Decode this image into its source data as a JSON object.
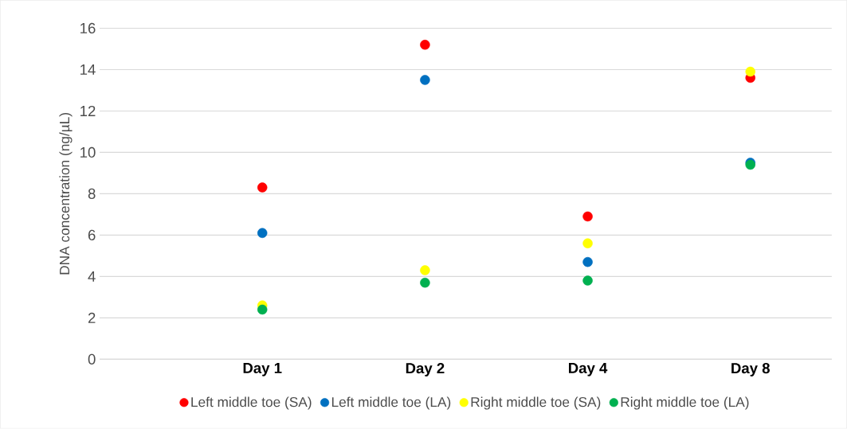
{
  "chart_data": {
    "type": "scatter",
    "ylabel": "DNA concentration (ng/µL)",
    "categories": [
      "Day 1",
      "Day 2",
      "Day 4",
      "Day 8"
    ],
    "series": [
      {
        "name": "Left middle toe (SA)",
        "color": "#ff0000",
        "values": [
          8.3,
          15.2,
          6.9,
          13.6
        ]
      },
      {
        "name": "Left middle toe (LA)",
        "color": "#0070c0",
        "values": [
          6.1,
          13.5,
          4.7,
          9.5
        ]
      },
      {
        "name": "Right middle toe (SA)",
        "color": "#ffff00",
        "values": [
          2.6,
          4.3,
          5.6,
          13.9
        ]
      },
      {
        "name": "Right middle toe (LA)",
        "color": "#00b050",
        "values": [
          2.4,
          3.7,
          3.8,
          9.4
        ]
      }
    ],
    "ylim": [
      0,
      16
    ],
    "yticks": [
      0,
      2,
      4,
      6,
      8,
      10,
      12,
      14,
      16
    ],
    "grid": "y",
    "legend": "bottom",
    "marker": "circle"
  }
}
